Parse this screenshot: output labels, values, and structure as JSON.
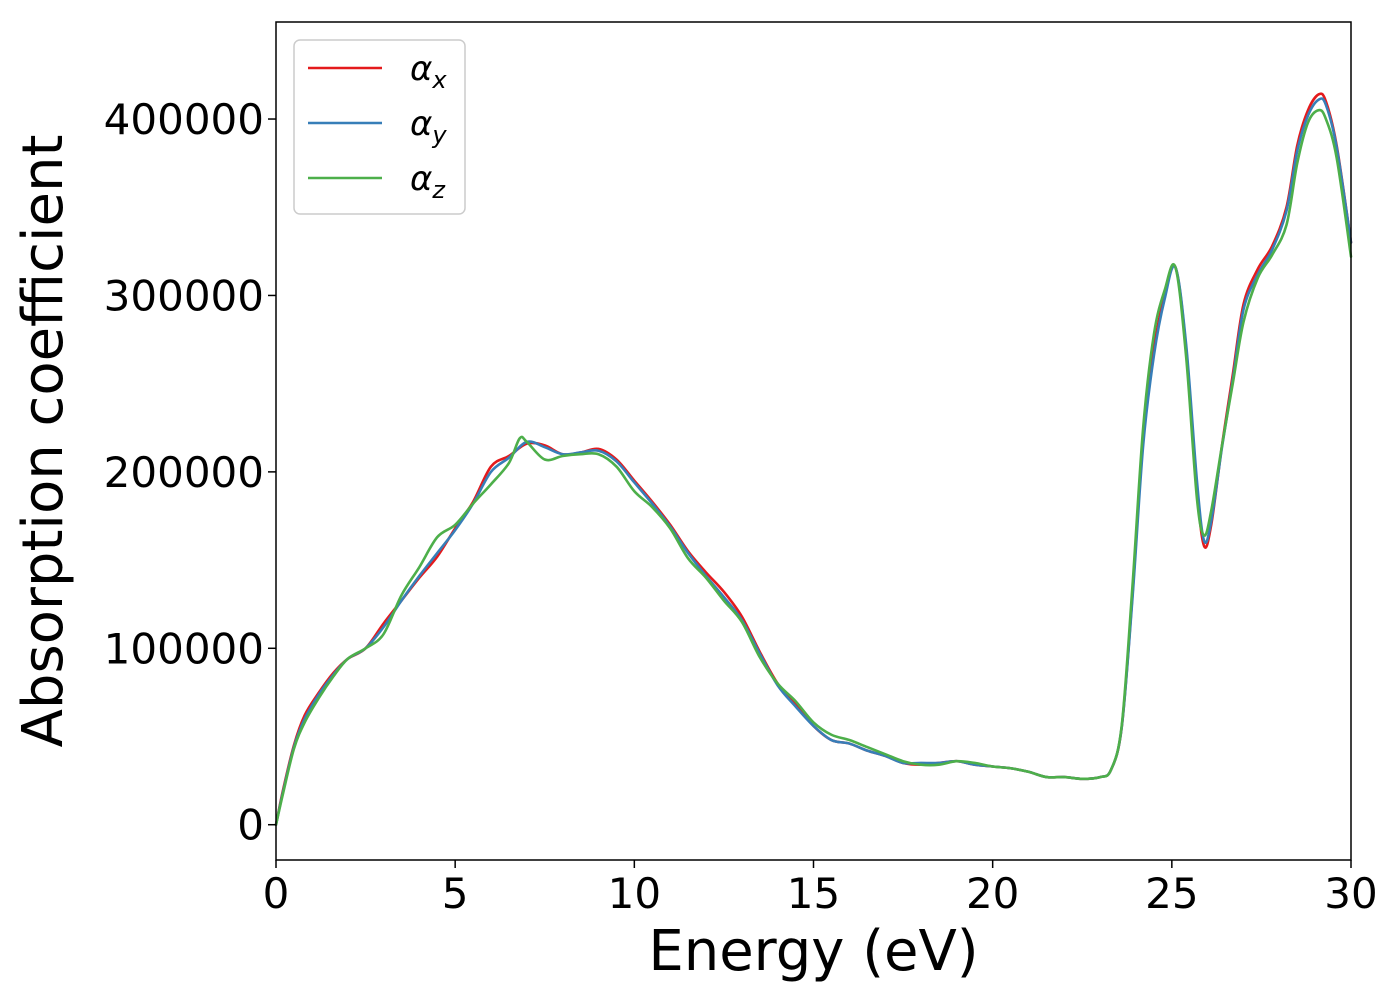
{
  "chart_data": {
    "type": "line",
    "title": "",
    "xlabel": "Energy (eV)",
    "ylabel": "Absorption coefficient",
    "xlim": [
      0,
      30
    ],
    "ylim": [
      -20000,
      455000
    ],
    "xticks": [
      0,
      5,
      10,
      15,
      20,
      25,
      30
    ],
    "xtick_labels": [
      "0",
      "5",
      "10",
      "15",
      "20",
      "25",
      "30"
    ],
    "yticks": [
      0,
      100000,
      200000,
      300000,
      400000
    ],
    "ytick_labels": [
      "0",
      "100000",
      "200000",
      "300000",
      "400000"
    ],
    "grid": false,
    "legend_position": "top-left",
    "series": [
      {
        "name": "α_x",
        "legend_main": "α",
        "legend_sub": "x",
        "color": "#e41a1c",
        "x": [
          0,
          0.2,
          0.5,
          0.8,
          1.2,
          1.6,
          2.0,
          2.5,
          3.0,
          3.5,
          4.0,
          4.5,
          5.0,
          5.5,
          6.0,
          6.5,
          7.0,
          7.5,
          8.0,
          8.5,
          9.0,
          9.5,
          10.0,
          10.5,
          11.0,
          11.5,
          12.0,
          12.5,
          13.0,
          13.5,
          14.0,
          14.5,
          15.0,
          15.5,
          16.0,
          16.5,
          17.0,
          17.5,
          18.0,
          18.5,
          19.0,
          19.5,
          20.0,
          20.5,
          21.0,
          21.5,
          22.0,
          22.5,
          23.0,
          23.3,
          23.6,
          23.9,
          24.2,
          24.5,
          24.8,
          25.1,
          25.4,
          25.7,
          25.9,
          26.1,
          26.4,
          26.7,
          27.0,
          27.4,
          27.8,
          28.2,
          28.5,
          28.8,
          29.1,
          29.3,
          29.6,
          30.0
        ],
        "y": [
          0,
          20000,
          45000,
          62000,
          75000,
          86000,
          94000,
          100000,
          114000,
          127000,
          140000,
          152000,
          168000,
          183000,
          203000,
          209000,
          216000,
          215000,
          210000,
          211000,
          213000,
          207000,
          195000,
          183000,
          170000,
          155000,
          143000,
          132000,
          118000,
          98000,
          80000,
          68000,
          56000,
          48000,
          46000,
          42000,
          39000,
          35000,
          34000,
          35000,
          36000,
          34000,
          33000,
          32000,
          30000,
          27000,
          27000,
          26000,
          27000,
          31000,
          55000,
          130000,
          220000,
          270000,
          300000,
          316000,
          270000,
          190000,
          158000,
          170000,
          215000,
          255000,
          295000,
          315000,
          328000,
          350000,
          385000,
          405000,
          414000,
          410000,
          385000,
          330000
        ]
      },
      {
        "name": "α_y",
        "legend_main": "α",
        "legend_sub": "y",
        "color": "#377eb8",
        "x": [
          0,
          0.2,
          0.5,
          0.8,
          1.2,
          1.6,
          2.0,
          2.5,
          3.0,
          3.5,
          4.0,
          4.5,
          5.0,
          5.5,
          6.0,
          6.5,
          7.0,
          7.5,
          8.0,
          8.5,
          9.0,
          9.5,
          10.0,
          10.5,
          11.0,
          11.5,
          12.0,
          12.5,
          13.0,
          13.5,
          14.0,
          14.5,
          15.0,
          15.5,
          16.0,
          16.5,
          17.0,
          17.5,
          18.0,
          18.5,
          19.0,
          19.5,
          20.0,
          20.5,
          21.0,
          21.5,
          22.0,
          22.5,
          23.0,
          23.3,
          23.6,
          23.9,
          24.2,
          24.5,
          24.8,
          25.1,
          25.4,
          25.7,
          25.9,
          26.1,
          26.4,
          26.7,
          27.0,
          27.4,
          27.8,
          28.2,
          28.5,
          28.8,
          29.1,
          29.3,
          29.6,
          30.0
        ],
        "y": [
          0,
          19000,
          44000,
          60000,
          74000,
          85000,
          94000,
          100000,
          112000,
          127000,
          141000,
          154000,
          167000,
          182000,
          200000,
          208000,
          217000,
          214000,
          210000,
          211000,
          212000,
          206000,
          194000,
          182000,
          169000,
          154000,
          141000,
          129000,
          116000,
          97000,
          79000,
          67000,
          56000,
          48000,
          46000,
          42000,
          39000,
          35000,
          35000,
          35000,
          36000,
          34000,
          33000,
          32000,
          30000,
          27000,
          27000,
          26000,
          27000,
          31000,
          55000,
          128000,
          215000,
          266000,
          298000,
          316000,
          272000,
          195000,
          161000,
          172000,
          214000,
          252000,
          292000,
          312000,
          326000,
          348000,
          382000,
          402000,
          411000,
          408000,
          384000,
          330000
        ]
      },
      {
        "name": "α_z",
        "legend_main": "α",
        "legend_sub": "z",
        "color": "#4daf4a",
        "x": [
          0,
          0.2,
          0.5,
          0.8,
          1.2,
          1.6,
          2.0,
          2.5,
          3.0,
          3.5,
          4.0,
          4.5,
          5.0,
          5.5,
          6.0,
          6.5,
          6.8,
          7.0,
          7.5,
          8.0,
          8.5,
          9.0,
          9.5,
          10.0,
          10.5,
          11.0,
          11.5,
          12.0,
          12.5,
          13.0,
          13.5,
          14.0,
          14.5,
          15.0,
          15.5,
          16.0,
          16.5,
          17.0,
          17.5,
          18.0,
          18.5,
          19.0,
          19.5,
          20.0,
          20.5,
          21.0,
          21.5,
          22.0,
          22.5,
          23.0,
          23.3,
          23.6,
          23.9,
          24.2,
          24.5,
          24.8,
          25.1,
          25.4,
          25.7,
          25.9,
          26.1,
          26.4,
          26.7,
          27.0,
          27.4,
          27.8,
          28.2,
          28.5,
          28.8,
          29.1,
          29.3,
          29.6,
          30.0
        ],
        "y": [
          0,
          18000,
          43000,
          58000,
          72000,
          84000,
          94000,
          100000,
          108000,
          130000,
          146000,
          163000,
          170000,
          182000,
          193000,
          205000,
          219000,
          217000,
          207000,
          209000,
          210000,
          210000,
          203000,
          189000,
          180000,
          168000,
          151000,
          140000,
          127000,
          115000,
          95000,
          80000,
          70000,
          58000,
          51000,
          48000,
          44000,
          40000,
          36000,
          34000,
          34000,
          36000,
          35000,
          33000,
          32000,
          30000,
          27000,
          27000,
          26000,
          27000,
          31000,
          56000,
          135000,
          225000,
          278000,
          303000,
          316000,
          265000,
          185000,
          164000,
          178000,
          215000,
          250000,
          285000,
          310000,
          323000,
          340000,
          375000,
          398000,
          405000,
          400000,
          378000,
          322000
        ]
      }
    ]
  }
}
